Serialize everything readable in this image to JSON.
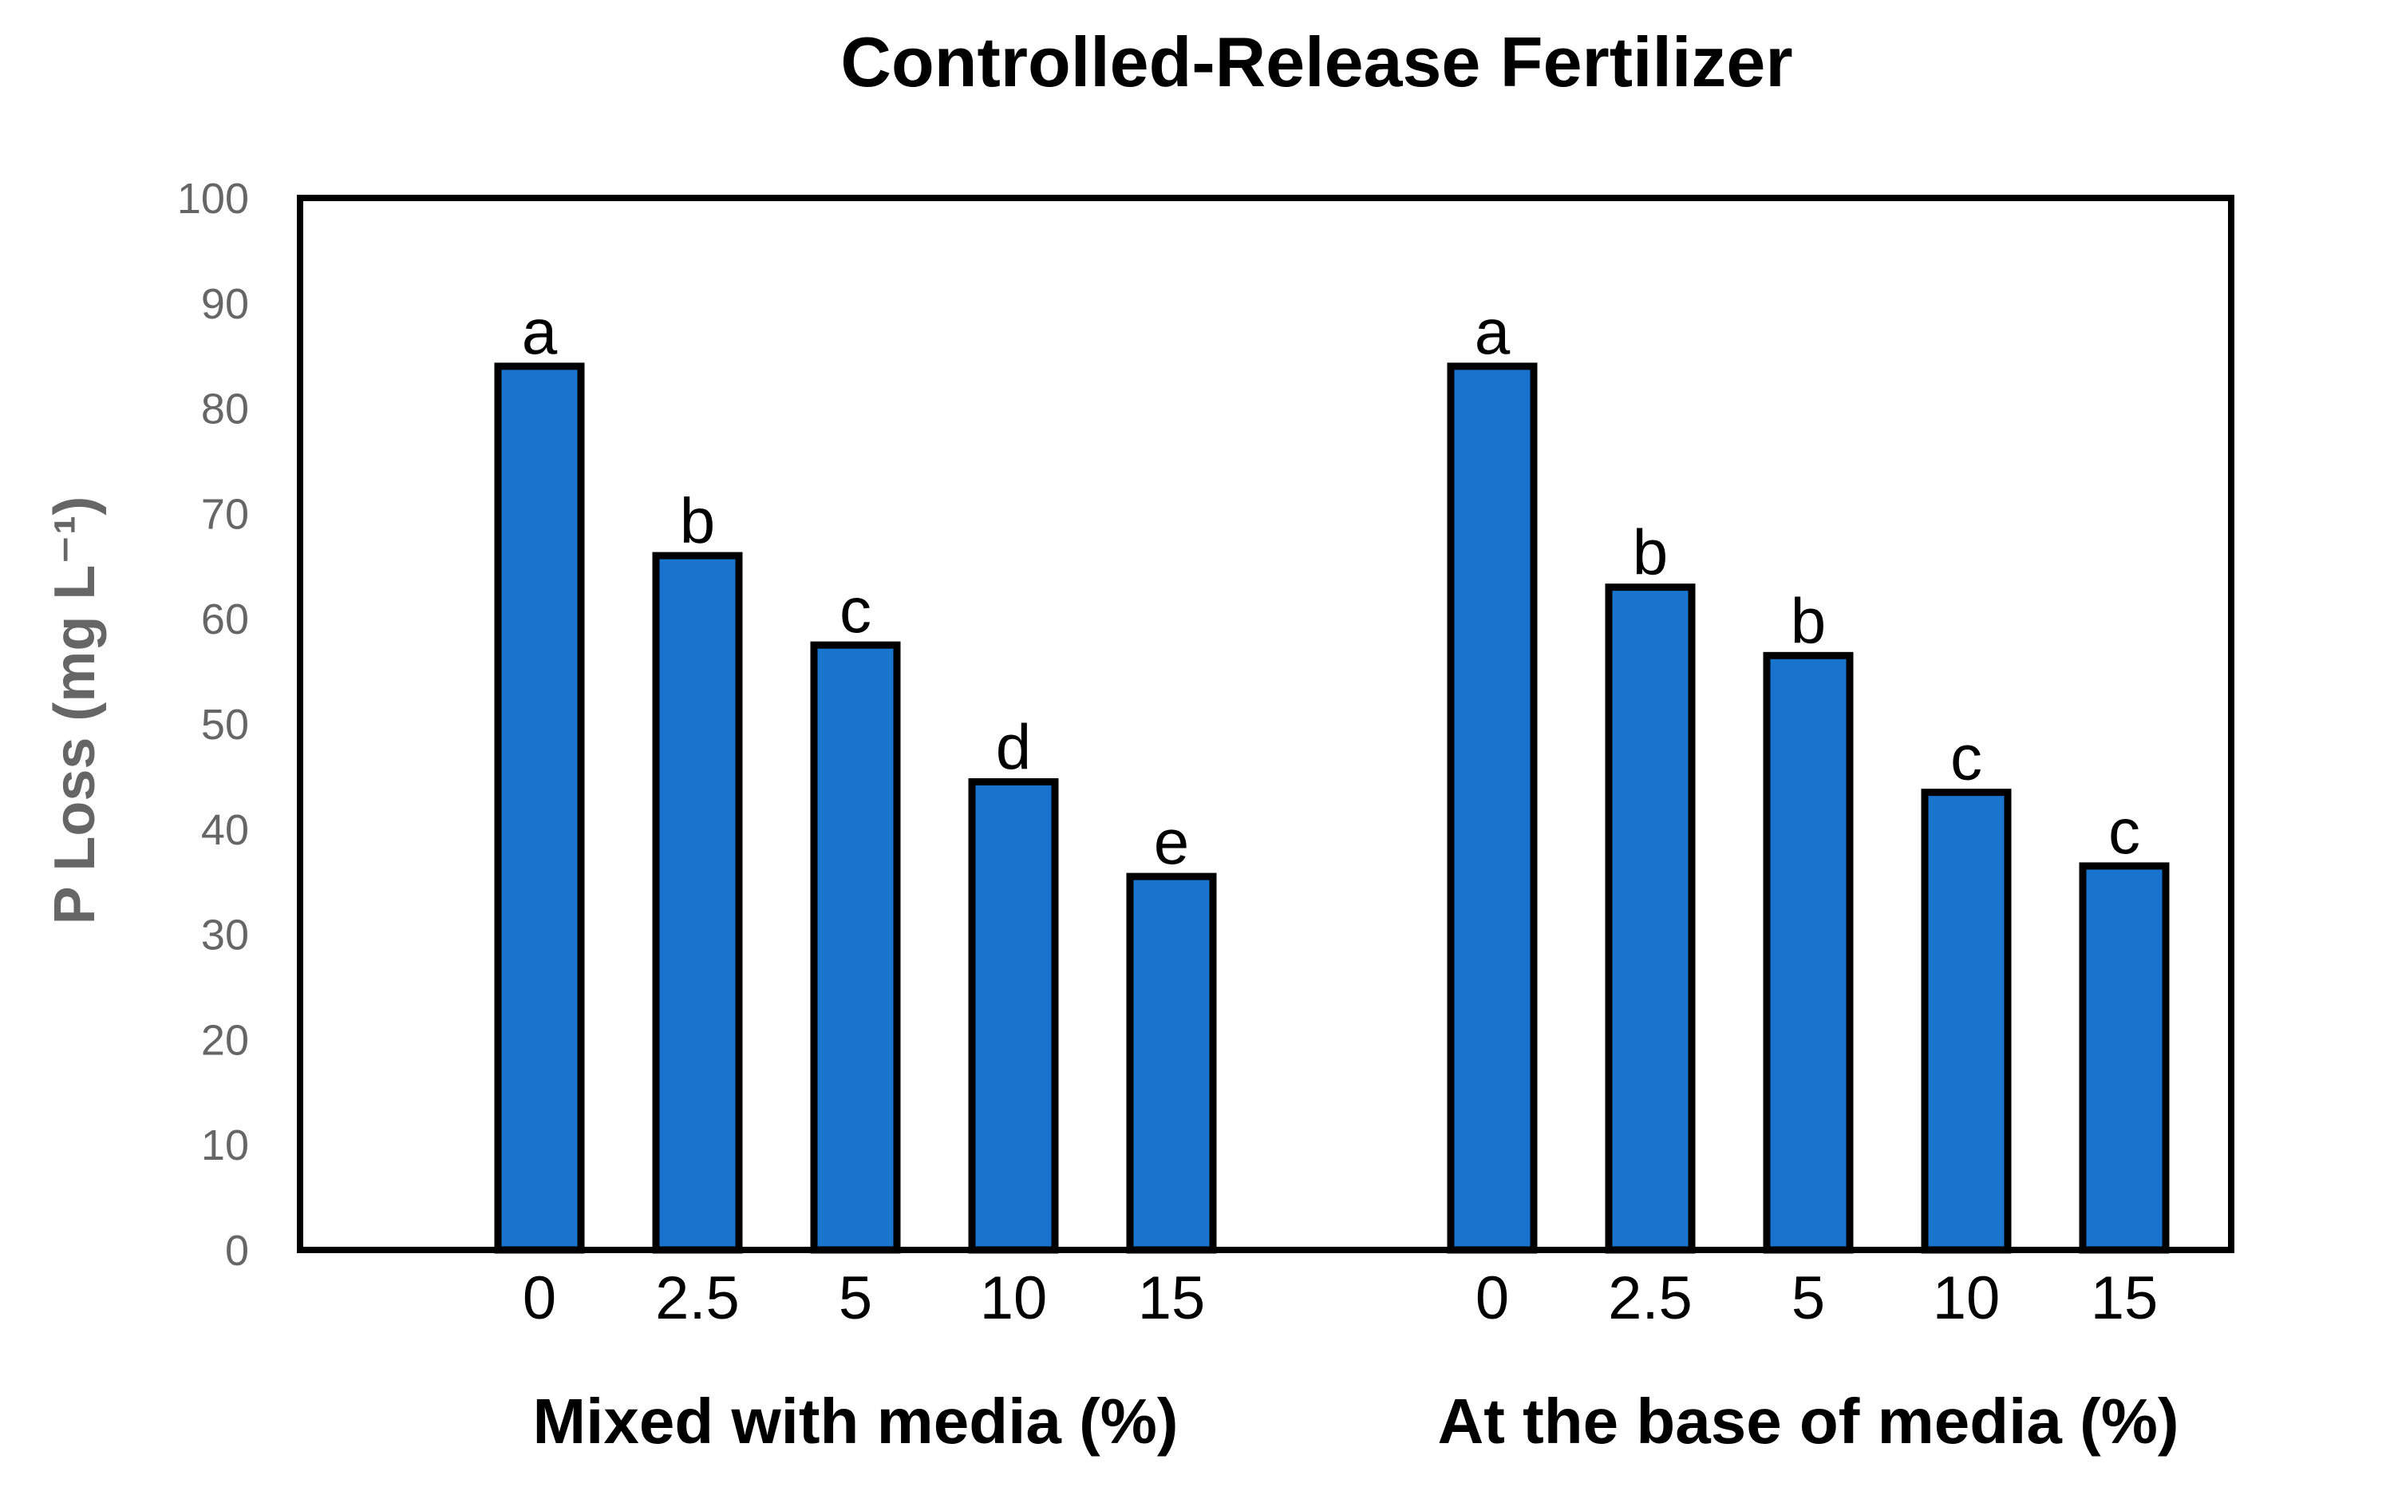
{
  "chart_data": {
    "type": "bar",
    "title": "Controlled-Release Fertilizer",
    "ylabel": "P Loss (mg L⁻¹)",
    "xlabel": "",
    "ylim": [
      0,
      100
    ],
    "yticks": [
      0,
      10,
      20,
      30,
      40,
      50,
      60,
      70,
      80,
      90,
      100
    ],
    "grid": false,
    "legend": "none",
    "bar_color": "#1874CD",
    "groups": [
      {
        "name": "Mixed with media (%)",
        "categories": [
          "0",
          "2.5",
          "5",
          "10",
          "15"
        ],
        "values": [
          84,
          66,
          57.5,
          44.5,
          35.5
        ],
        "labels": [
          "a",
          "b",
          "c",
          "d",
          "e"
        ]
      },
      {
        "name": "At the base of media (%)",
        "categories": [
          "0",
          "2.5",
          "5",
          "10",
          "15"
        ],
        "values": [
          84,
          63,
          56.5,
          43.5,
          36.5
        ],
        "labels": [
          "a",
          "b",
          "b",
          "c",
          "c"
        ]
      }
    ]
  }
}
